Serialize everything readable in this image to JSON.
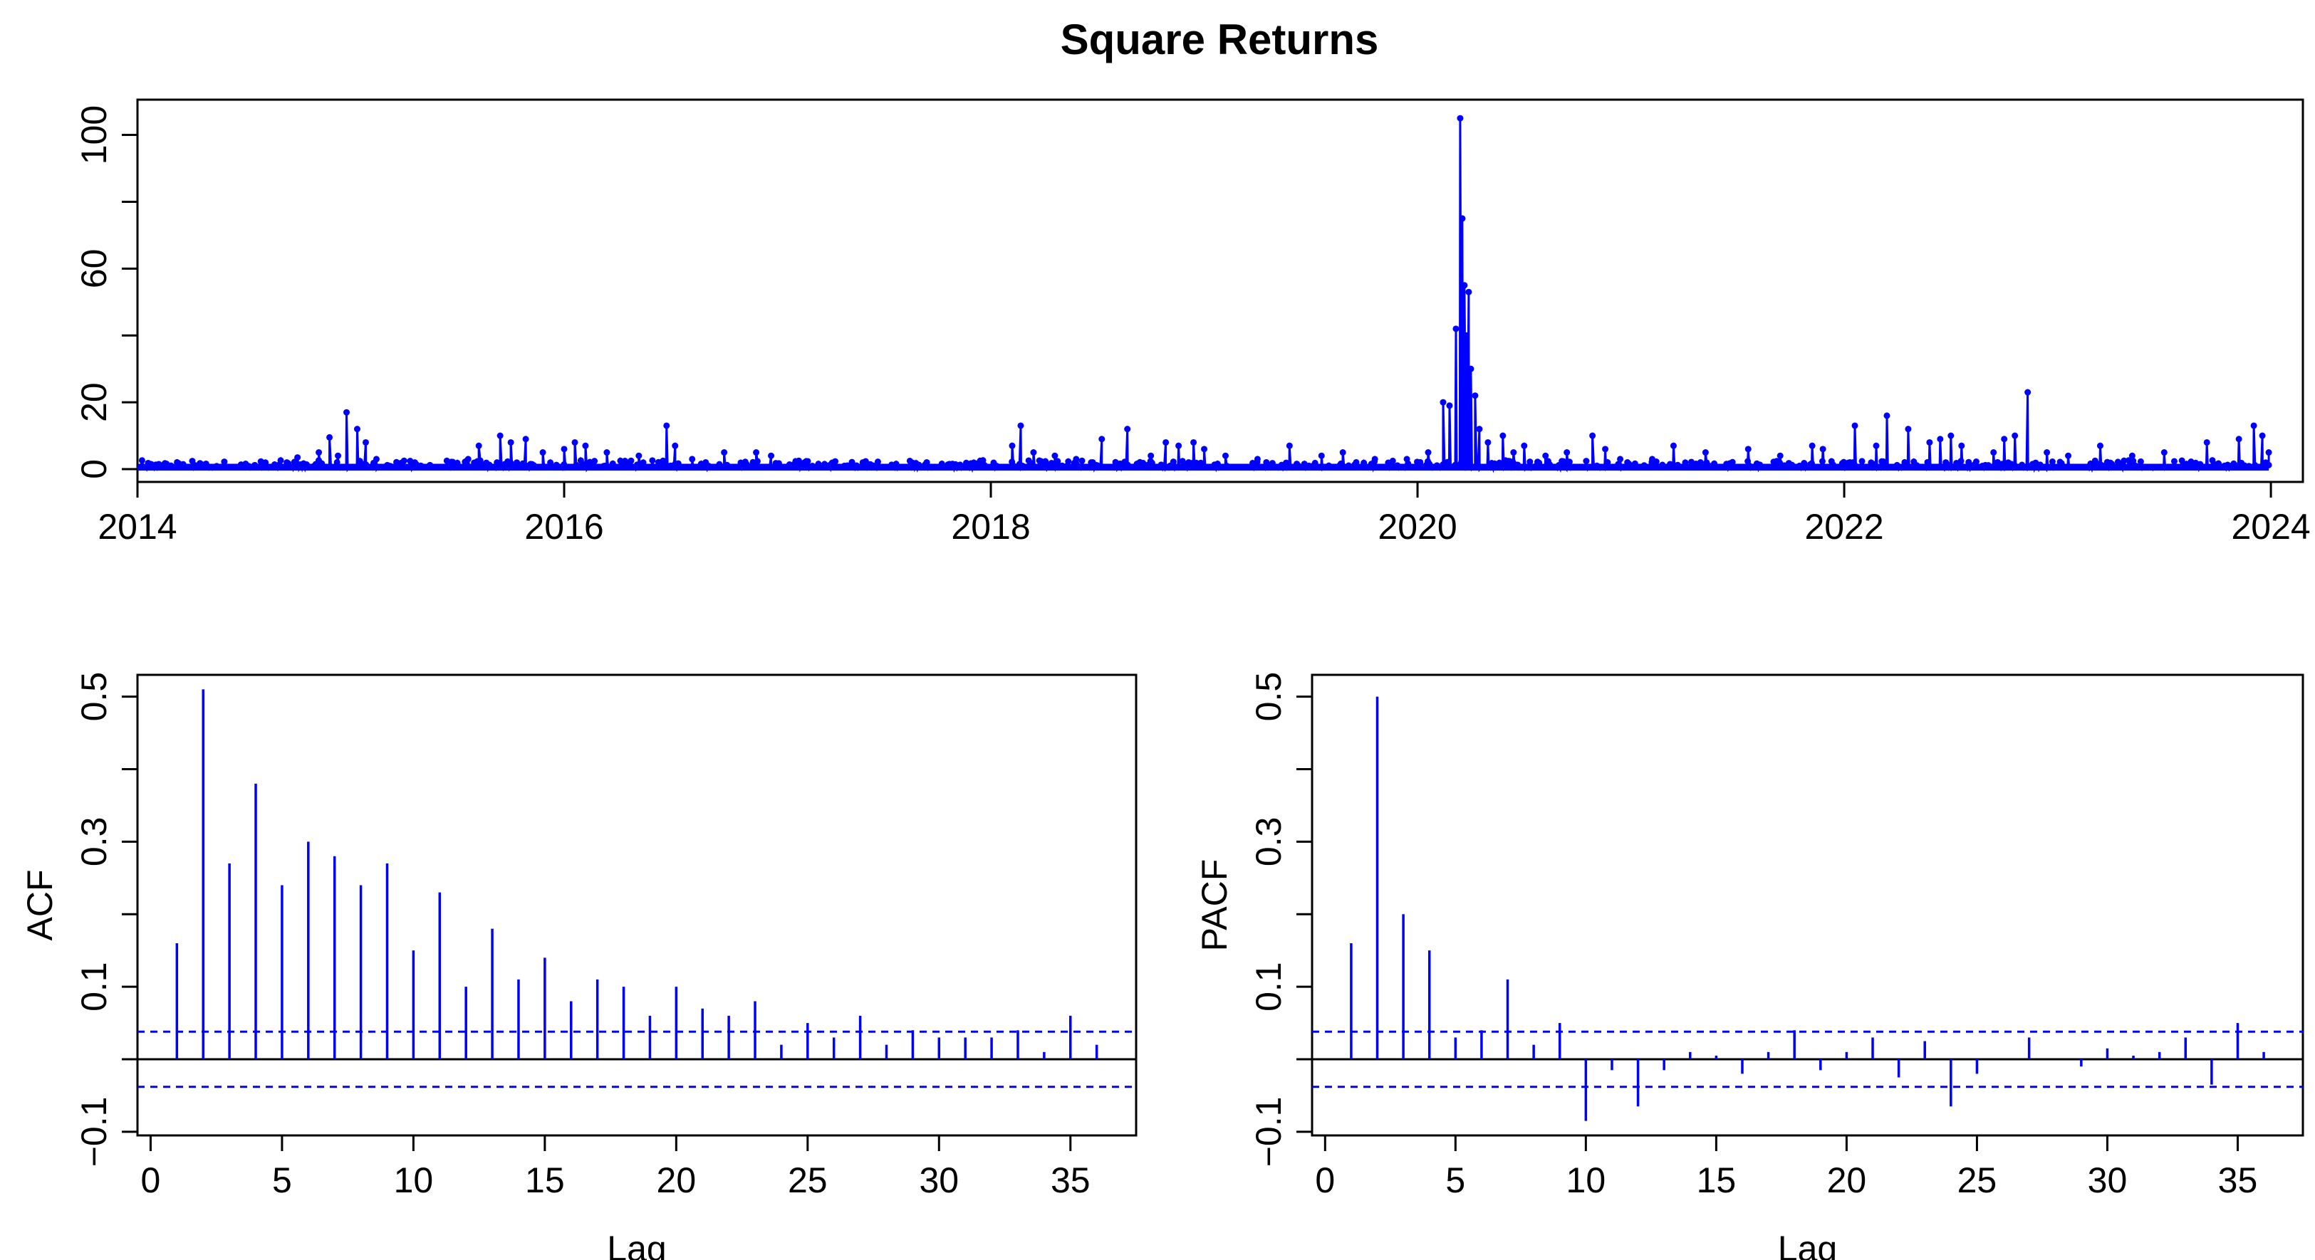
{
  "title": "Square Returns",
  "colors": {
    "series": "#0000ff",
    "axis": "#000000",
    "conf": "#0000ff"
  },
  "chart_data": [
    {
      "type": "line",
      "panel": "time-series",
      "title": "Square Returns",
      "xlabel": "",
      "ylabel": "",
      "xlim": [
        2014,
        2024.15
      ],
      "ylim": [
        0,
        108
      ],
      "x_ticks": [
        2014,
        2016,
        2018,
        2020,
        2022,
        2024
      ],
      "y_ticks": [
        0,
        20,
        60,
        100
      ],
      "y_minor_ticks": [
        40,
        80
      ],
      "markers": true,
      "spikes": [
        [
          2014.1,
          1.5
        ],
        [
          2014.3,
          1.0
        ],
        [
          2014.55,
          1.2
        ],
        [
          2014.7,
          2.0
        ],
        [
          2014.75,
          3.5
        ],
        [
          2014.85,
          5.0
        ],
        [
          2014.9,
          9.5
        ],
        [
          2014.94,
          4.0
        ],
        [
          2014.98,
          17.0
        ],
        [
          2015.03,
          12.0
        ],
        [
          2015.07,
          8.0
        ],
        [
          2015.12,
          3.0
        ],
        [
          2015.3,
          2.0
        ],
        [
          2015.45,
          2.5
        ],
        [
          2015.55,
          3.0
        ],
        [
          2015.6,
          7.0
        ],
        [
          2015.7,
          10.0
        ],
        [
          2015.75,
          8.0
        ],
        [
          2015.82,
          9.0
        ],
        [
          2015.9,
          5.0
        ],
        [
          2016.0,
          6.0
        ],
        [
          2016.05,
          8.0
        ],
        [
          2016.1,
          7.0
        ],
        [
          2016.2,
          5.0
        ],
        [
          2016.35,
          4.0
        ],
        [
          2016.48,
          13.0
        ],
        [
          2016.52,
          7.0
        ],
        [
          2016.6,
          3.0
        ],
        [
          2016.75,
          5.0
        ],
        [
          2016.9,
          5.0
        ],
        [
          2016.97,
          4.0
        ],
        [
          2017.1,
          2.5
        ],
        [
          2017.4,
          2.0
        ],
        [
          2017.7,
          2.0
        ],
        [
          2017.95,
          2.5
        ],
        [
          2018.1,
          7.0
        ],
        [
          2018.14,
          13.0
        ],
        [
          2018.2,
          5.0
        ],
        [
          2018.3,
          4.0
        ],
        [
          2018.4,
          3.0
        ],
        [
          2018.52,
          9.0
        ],
        [
          2018.64,
          12.0
        ],
        [
          2018.75,
          4.0
        ],
        [
          2018.82,
          8.0
        ],
        [
          2018.88,
          7.0
        ],
        [
          2018.95,
          8.0
        ],
        [
          2019.0,
          6.0
        ],
        [
          2019.1,
          4.0
        ],
        [
          2019.25,
          3.0
        ],
        [
          2019.4,
          7.0
        ],
        [
          2019.55,
          4.0
        ],
        [
          2019.65,
          5.0
        ],
        [
          2019.8,
          3.0
        ],
        [
          2019.95,
          3.0
        ],
        [
          2020.05,
          5.0
        ],
        [
          2020.12,
          20.0
        ],
        [
          2020.15,
          19.0
        ],
        [
          2020.18,
          42.0
        ],
        [
          2020.2,
          105.0
        ],
        [
          2020.21,
          75.0
        ],
        [
          2020.22,
          55.0
        ],
        [
          2020.23,
          40.0
        ],
        [
          2020.24,
          53.0
        ],
        [
          2020.25,
          30.0
        ],
        [
          2020.27,
          22.0
        ],
        [
          2020.29,
          12.0
        ],
        [
          2020.33,
          8.0
        ],
        [
          2020.4,
          10.0
        ],
        [
          2020.45,
          5.0
        ],
        [
          2020.5,
          7.0
        ],
        [
          2020.6,
          4.0
        ],
        [
          2020.7,
          5.0
        ],
        [
          2020.82,
          10.0
        ],
        [
          2020.88,
          6.0
        ],
        [
          2020.95,
          3.0
        ],
        [
          2021.1,
          3.0
        ],
        [
          2021.2,
          7.0
        ],
        [
          2021.35,
          5.0
        ],
        [
          2021.55,
          6.0
        ],
        [
          2021.7,
          4.0
        ],
        [
          2021.85,
          7.0
        ],
        [
          2021.9,
          6.0
        ],
        [
          2022.05,
          13.0
        ],
        [
          2022.15,
          7.0
        ],
        [
          2022.2,
          16.0
        ],
        [
          2022.3,
          12.0
        ],
        [
          2022.4,
          8.0
        ],
        [
          2022.45,
          9.0
        ],
        [
          2022.5,
          10.0
        ],
        [
          2022.55,
          7.0
        ],
        [
          2022.7,
          5.0
        ],
        [
          2022.75,
          9.0
        ],
        [
          2022.8,
          10.0
        ],
        [
          2022.86,
          23.0
        ],
        [
          2022.95,
          5.0
        ],
        [
          2023.05,
          4.0
        ],
        [
          2023.2,
          7.0
        ],
        [
          2023.35,
          4.0
        ],
        [
          2023.5,
          5.0
        ],
        [
          2023.7,
          8.0
        ],
        [
          2023.85,
          9.0
        ],
        [
          2023.92,
          13.0
        ],
        [
          2023.96,
          10.0
        ],
        [
          2023.99,
          5.0
        ]
      ],
      "baseline_max": 1.2
    },
    {
      "type": "bar",
      "panel": "acf",
      "xlabel": "Lag",
      "ylabel": "ACF",
      "xlim": [
        -0.5,
        37.5
      ],
      "ylim": [
        -0.105,
        0.53
      ],
      "x_ticks": [
        0,
        5,
        10,
        15,
        20,
        25,
        30,
        35
      ],
      "y_ticks": [
        -0.1,
        0.1,
        0.3,
        0.5
      ],
      "y_tick_labels": [
        "−0.1",
        "0.1",
        "0.3",
        "0.5"
      ],
      "y_minor_ticks": [
        0.0,
        0.2,
        0.4
      ],
      "conf_band": 0.038,
      "lags": [
        1,
        2,
        3,
        4,
        5,
        6,
        7,
        8,
        9,
        10,
        11,
        12,
        13,
        14,
        15,
        16,
        17,
        18,
        19,
        20,
        21,
        22,
        23,
        24,
        25,
        26,
        27,
        28,
        29,
        30,
        31,
        32,
        33,
        34,
        35,
        36
      ],
      "values": [
        0.16,
        0.51,
        0.27,
        0.38,
        0.24,
        0.3,
        0.28,
        0.24,
        0.27,
        0.15,
        0.23,
        0.1,
        0.18,
        0.11,
        0.14,
        0.08,
        0.11,
        0.1,
        0.06,
        0.1,
        0.07,
        0.06,
        0.08,
        0.02,
        0.05,
        0.03,
        0.06,
        0.02,
        0.04,
        0.03,
        0.03,
        0.03,
        0.04,
        0.01,
        0.06,
        0.02
      ]
    },
    {
      "type": "bar",
      "panel": "pacf",
      "xlabel": "Lag",
      "ylabel": "PACF",
      "xlim": [
        -0.5,
        37.5
      ],
      "ylim": [
        -0.105,
        0.53
      ],
      "x_ticks": [
        0,
        5,
        10,
        15,
        20,
        25,
        30,
        35
      ],
      "y_ticks": [
        -0.1,
        0.1,
        0.3,
        0.5
      ],
      "y_tick_labels": [
        "−0.1",
        "0.1",
        "0.3",
        "0.5"
      ],
      "y_minor_ticks": [
        0.0,
        0.2,
        0.4
      ],
      "conf_band": 0.038,
      "lags": [
        1,
        2,
        3,
        4,
        5,
        6,
        7,
        8,
        9,
        10,
        11,
        12,
        13,
        14,
        15,
        16,
        17,
        18,
        19,
        20,
        21,
        22,
        23,
        24,
        25,
        26,
        27,
        28,
        29,
        30,
        31,
        32,
        33,
        34,
        35,
        36
      ],
      "values": [
        0.16,
        0.5,
        0.2,
        0.15,
        0.03,
        0.04,
        0.11,
        0.02,
        0.05,
        -0.085,
        -0.015,
        -0.065,
        -0.015,
        0.01,
        0.005,
        -0.02,
        0.01,
        0.04,
        -0.015,
        0.01,
        0.03,
        -0.025,
        0.025,
        -0.065,
        -0.02,
        0.0,
        0.03,
        0.0,
        -0.01,
        0.015,
        0.005,
        0.01,
        0.03,
        -0.035,
        0.05,
        0.01
      ]
    }
  ]
}
